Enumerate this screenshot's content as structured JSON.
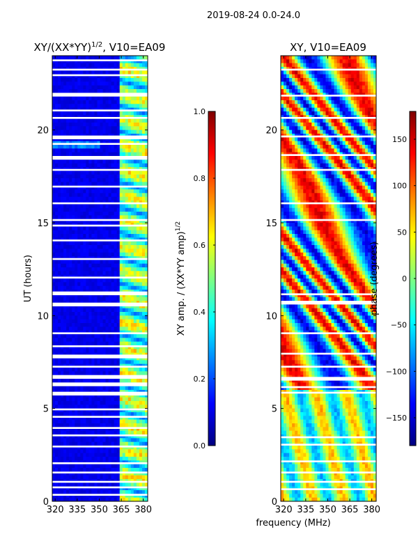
{
  "suptitle": "2019-08-24 0.0-24.0",
  "colors": {
    "jet": [
      "#00007f",
      "#0000ff",
      "#0080ff",
      "#00ffff",
      "#80ff80",
      "#ffff00",
      "#ff8000",
      "#ff0000",
      "#7f0000"
    ],
    "flag_band": "#ffffff",
    "axis": "#000000"
  },
  "chart_data": [
    {
      "type": "heatmap",
      "title": "XY/(XX*YY)^1/2, V10=EA09",
      "title_main": "XY/(XX*YY)",
      "title_exp": "1/2",
      "title_tail": ", V10=EA09",
      "xlabel": "",
      "ylabel": "UT (hours)",
      "xlim": [
        318,
        383
      ],
      "ylim": [
        0,
        24
      ],
      "xticks": [
        320,
        335,
        350,
        365,
        380
      ],
      "yticks": [
        0,
        5,
        10,
        15,
        20
      ],
      "quantity": "normalized XY amplitude",
      "hot_channels_mhz": [
        363,
        383
      ],
      "flagged_hours": [
        [
          23.7,
          23.8
        ],
        [
          23.2,
          23.3
        ],
        [
          22.9,
          23.0
        ],
        [
          21.8,
          22.0
        ],
        [
          21.0,
          21.1
        ],
        [
          20.6,
          20.7
        ],
        [
          19.5,
          19.7
        ],
        [
          19.2,
          19.3
        ],
        [
          18.4,
          18.6
        ],
        [
          17.8,
          17.9
        ],
        [
          16.9,
          17.0
        ],
        [
          16.0,
          16.1
        ],
        [
          15.1,
          15.2
        ],
        [
          14.8,
          14.9
        ],
        [
          14.0,
          14.1
        ],
        [
          13.0,
          13.1
        ],
        [
          12.0,
          12.1
        ],
        [
          11.1,
          11.3
        ],
        [
          10.5,
          10.7
        ],
        [
          9.0,
          9.1
        ],
        [
          8.3,
          8.4
        ],
        [
          7.7,
          7.9
        ],
        [
          7.2,
          7.3
        ],
        [
          6.6,
          6.8
        ],
        [
          6.2,
          6.4
        ],
        [
          5.7,
          5.9
        ],
        [
          4.9,
          5.0
        ],
        [
          4.5,
          4.6
        ],
        [
          3.9,
          4.0
        ],
        [
          3.5,
          3.6
        ],
        [
          2.9,
          3.0
        ],
        [
          2.0,
          2.1
        ],
        [
          1.5,
          1.6
        ],
        [
          1.0,
          1.1
        ],
        [
          0.7,
          0.8
        ],
        [
          0.3,
          0.4
        ]
      ]
    },
    {
      "type": "heatmap",
      "title": "XY, V10=EA09",
      "xlabel": "frequency (MHz)",
      "ylabel": "",
      "xlim": [
        318,
        383
      ],
      "ylim": [
        0,
        24
      ],
      "xticks": [
        320,
        335,
        350,
        365,
        380
      ],
      "yticks": [
        0,
        5,
        10,
        15,
        20
      ],
      "quantity": "XY phase (degrees)",
      "flagged_hours": [
        [
          23.2,
          23.3
        ],
        [
          21.8,
          21.9
        ],
        [
          20.6,
          20.7
        ],
        [
          19.6,
          19.7
        ],
        [
          18.6,
          18.7
        ],
        [
          17.8,
          17.9
        ],
        [
          16.0,
          16.1
        ],
        [
          15.1,
          15.2
        ],
        [
          11.1,
          11.2
        ],
        [
          10.6,
          10.8
        ],
        [
          9.0,
          9.1
        ],
        [
          7.9,
          8.0
        ],
        [
          7.2,
          7.3
        ],
        [
          6.5,
          6.7
        ],
        [
          6.1,
          6.2
        ],
        [
          5.8,
          5.9
        ],
        [
          3.4,
          3.5
        ],
        [
          3.0,
          3.1
        ],
        [
          2.1,
          2.2
        ],
        [
          1.5,
          1.6
        ],
        [
          1.0,
          1.1
        ],
        [
          0.6,
          0.7
        ]
      ]
    }
  ],
  "colorbars": [
    {
      "label": "XY amp. / (XX*YY amp)^1/2",
      "label_main": "XY amp. / (XX*YY amp)",
      "label_exp": "1/2",
      "range": [
        0.0,
        1.0
      ],
      "ticks": [
        0.0,
        0.2,
        0.4,
        0.6,
        0.8,
        1.0
      ],
      "tick_labels": [
        "0.0",
        "0.2",
        "0.4",
        "0.6",
        "0.8",
        "1.0"
      ]
    },
    {
      "label": "phase (degrees)",
      "range": [
        -180,
        180
      ],
      "ticks": [
        -150,
        -100,
        -50,
        0,
        50,
        100,
        150
      ],
      "tick_labels": [
        "−150",
        "−100",
        "−50",
        "0",
        "50",
        "100",
        "150"
      ]
    }
  ]
}
